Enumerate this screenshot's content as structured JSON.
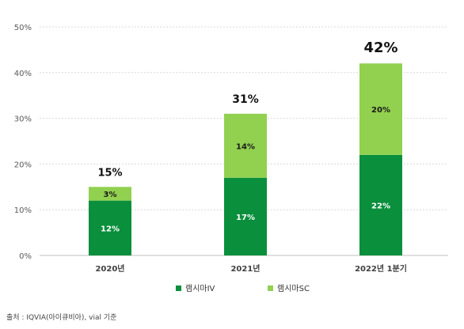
{
  "chart_data": {
    "type": "bar",
    "stacked": true,
    "categories": [
      "2020년",
      "2021년",
      "2022년  1분기"
    ],
    "series": [
      {
        "name": "램시마IV",
        "values": [
          12,
          17,
          22
        ],
        "labels": [
          "12%",
          "17%",
          "22%"
        ],
        "color": "#0a8f3c"
      },
      {
        "name": "램시마SC",
        "values": [
          3,
          14,
          20
        ],
        "labels": [
          "3%",
          "14%",
          "20%"
        ],
        "color": "#92d050"
      }
    ],
    "totals": [
      "15%",
      "31%",
      "42%"
    ],
    "ylim": [
      0,
      50
    ],
    "yticks": [
      "0%",
      "10%",
      "20%",
      "30%",
      "40%",
      "50%"
    ],
    "grid": true,
    "legend_position": "bottom"
  },
  "source_note": "출처 : IQVIA(아이큐비아), vial 기준"
}
